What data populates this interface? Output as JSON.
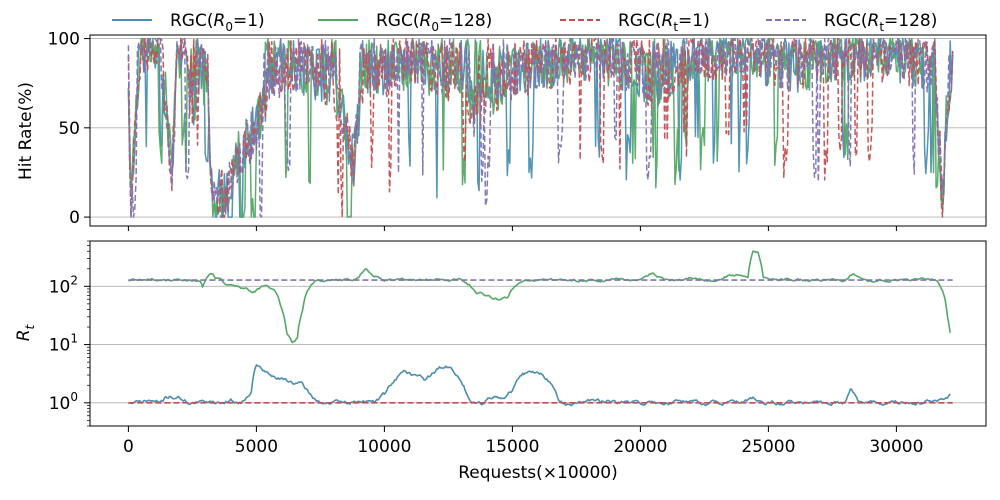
{
  "legend": [
    {
      "label": "RGC(R₀=1)",
      "base": "RGC(",
      "sym": "R",
      "sub": "0",
      "rest": "=1)",
      "color": "#4a8fb0",
      "dash": "solid"
    },
    {
      "label": "RGC(R₀=128)",
      "base": "RGC(",
      "sym": "R",
      "sub": "0",
      "rest": "=128)",
      "color": "#55a868",
      "dash": "solid"
    },
    {
      "label": "RGC(Rₜ=1)",
      "base": "RGC(",
      "sym": "R",
      "sub": "t",
      "rest": "=1)",
      "color": "#c44e52",
      "dash": "dashed"
    },
    {
      "label": "RGC(Rₜ=128)",
      "base": "RGC(",
      "sym": "R",
      "sub": "t",
      "rest": "=128)",
      "color": "#8172b2",
      "dash": "dashed"
    }
  ],
  "chart_data": [
    {
      "type": "line",
      "panel": "top",
      "ylabel": "Hit Rate(%)",
      "xlim": [
        -1500,
        33500
      ],
      "ylim": [
        -5,
        102
      ],
      "yticks": [
        0,
        50,
        100
      ],
      "ytick_labels": [
        "0",
        "50",
        "100"
      ],
      "grid": "horizontal",
      "x_step": 50,
      "profile_x": [
        0,
        100,
        300,
        500,
        800,
        1200,
        1500,
        1700,
        1900,
        2200,
        2500,
        2800,
        3100,
        3300,
        3500,
        3800,
        4200,
        4500,
        4800,
        5200,
        5500,
        5800,
        6200,
        6600,
        7000,
        7500,
        8000,
        8500,
        8800,
        9200,
        9600,
        10000,
        10500,
        11000,
        11500,
        12000,
        12500,
        13000,
        13500,
        14000,
        14500,
        15000,
        15500,
        16000,
        16500,
        17000,
        17500,
        18000,
        18500,
        19000,
        19500,
        20000,
        20500,
        21000,
        21500,
        22000,
        22500,
        23000,
        23500,
        24000,
        24500,
        25000,
        25500,
        26000,
        26500,
        27000,
        27500,
        28000,
        28500,
        29000,
        29500,
        30000,
        30500,
        31000,
        31500,
        31800,
        32000,
        32200
      ],
      "profile_y": [
        80,
        5,
        60,
        95,
        98,
        97,
        60,
        20,
        90,
        95,
        60,
        85,
        70,
        5,
        15,
        10,
        30,
        40,
        45,
        60,
        75,
        80,
        85,
        85,
        82,
        80,
        75,
        50,
        30,
        85,
        82,
        80,
        85,
        87,
        85,
        80,
        80,
        85,
        60,
        70,
        72,
        80,
        82,
        85,
        85,
        88,
        88,
        90,
        88,
        87,
        85,
        80,
        75,
        80,
        85,
        88,
        90,
        92,
        92,
        92,
        90,
        88,
        86,
        85,
        85,
        87,
        88,
        90,
        90,
        90,
        90,
        90,
        88,
        85,
        85,
        10,
        70,
        85
      ],
      "series": [
        {
          "name": "RGC(R₀=1)",
          "color": "#4a8fb0",
          "dash": "solid",
          "seed": 11
        },
        {
          "name": "RGC(R₀=128)",
          "color": "#55a868",
          "dash": "solid",
          "seed": 23
        },
        {
          "name": "RGC(Rₜ=1)",
          "color": "#c44e52",
          "dash": "dashed",
          "seed": 37
        },
        {
          "name": "RGC(Rₜ=128)",
          "color": "#8172b2",
          "dash": "dashed",
          "seed": 53
        }
      ]
    },
    {
      "type": "line",
      "panel": "bottom",
      "ylabel": "R_t",
      "yscale": "log",
      "xlabel": "Requests(×10000)",
      "xlim": [
        -1500,
        33500
      ],
      "ylim": [
        0.4,
        600
      ],
      "xticks": [
        0,
        5000,
        10000,
        15000,
        20000,
        25000,
        30000
      ],
      "xtick_labels": [
        "0",
        "5000",
        "10000",
        "15000",
        "20000",
        "25000",
        "30000"
      ],
      "yticks": [
        1,
        10,
        100
      ],
      "ytick_bases": [
        "10",
        "10",
        "10"
      ],
      "ytick_exps": [
        "0",
        "1",
        "2"
      ],
      "grid": "horizontal",
      "x_step": 50,
      "series": [
        {
          "name": "RGC(R₀=1)",
          "color": "#4a8fb0",
          "dash": "solid",
          "seed": 71,
          "noise": 0.12,
          "x": [
            0,
            400,
            800,
            1200,
            1600,
            2000,
            2400,
            2800,
            3200,
            3600,
            4000,
            4400,
            4800,
            5000,
            5300,
            5600,
            6000,
            6400,
            6800,
            7200,
            7600,
            8000,
            8800,
            9200,
            9600,
            10000,
            10400,
            10800,
            11200,
            11600,
            12000,
            12400,
            12800,
            13200,
            13400,
            13800,
            14200,
            14600,
            15000,
            15400,
            15800,
            16200,
            16500,
            16800,
            17200,
            17600,
            18000,
            19000,
            20000,
            21000,
            22000,
            22600,
            23000,
            24000,
            24400,
            24800,
            25200,
            26000,
            27000,
            28000,
            28200,
            28500,
            29000,
            30000,
            31000,
            31500,
            32000,
            32100
          ],
          "y": [
            1.0,
            1.0,
            1.1,
            1.0,
            1.3,
            1.2,
            1.0,
            1.0,
            1.1,
            1.0,
            1.1,
            1.0,
            1.6,
            4.5,
            3.5,
            2.8,
            2.5,
            2.3,
            2.0,
            1.2,
            1.0,
            1.0,
            1.0,
            1.1,
            1.0,
            1.4,
            2.5,
            3.5,
            3.0,
            2.5,
            3.5,
            4.5,
            3.0,
            1.5,
            1.1,
            1.0,
            1.3,
            1.2,
            1.6,
            3.0,
            3.5,
            3.0,
            2.2,
            1.0,
            1.0,
            1.0,
            1.1,
            1.0,
            1.0,
            1.0,
            1.1,
            1.0,
            1.0,
            1.0,
            1.2,
            0.9,
            1.0,
            1.0,
            1.0,
            1.0,
            1.8,
            1.1,
            1.0,
            1.0,
            1.0,
            1.1,
            1.2,
            1.3
          ]
        },
        {
          "name": "RGC(R₀=128)",
          "color": "#55a868",
          "dash": "solid",
          "seed": 89,
          "noise": 0.08,
          "x": [
            0,
            2800,
            2900,
            3000,
            3100,
            3200,
            3400,
            3600,
            3800,
            4200,
            4600,
            4900,
            5300,
            5700,
            6000,
            6200,
            6400,
            6600,
            6800,
            7000,
            7300,
            7600,
            8000,
            8600,
            9000,
            9300,
            9600,
            10000,
            11000,
            12000,
            13000,
            13400,
            13600,
            14000,
            14400,
            14800,
            15000,
            15400,
            16000,
            17000,
            18000,
            19000,
            20000,
            20400,
            21000,
            21600,
            22000,
            22600,
            23000,
            23600,
            24000,
            24200,
            24400,
            24600,
            24800,
            25000,
            26000,
            27000,
            28000,
            28300,
            29000,
            30000,
            31000,
            31600,
            31800,
            32000,
            32100
          ],
          "y": [
            128,
            128,
            100,
            120,
            150,
            170,
            140,
            130,
            110,
            100,
            90,
            80,
            100,
            90,
            40,
            15,
            11,
            13,
            40,
            90,
            120,
            128,
            128,
            128,
            140,
            200,
            150,
            128,
            128,
            128,
            128,
            100,
            80,
            70,
            60,
            65,
            90,
            128,
            128,
            128,
            128,
            128,
            128,
            170,
            128,
            128,
            140,
            128,
            128,
            160,
            150,
            130,
            420,
            380,
            140,
            128,
            128,
            128,
            128,
            160,
            128,
            128,
            128,
            128,
            90,
            30,
            16
          ]
        },
        {
          "name": "RGC(Rₜ=1)",
          "color": "#c44e52",
          "dash": "dashed",
          "seed": 0,
          "noise": 0,
          "x": [
            0,
            32200
          ],
          "y": [
            1,
            1
          ]
        },
        {
          "name": "RGC(Rₜ=128)",
          "color": "#8172b2",
          "dash": "dashed",
          "seed": 0,
          "noise": 0,
          "x": [
            0,
            32200
          ],
          "y": [
            128,
            128
          ]
        }
      ]
    }
  ]
}
